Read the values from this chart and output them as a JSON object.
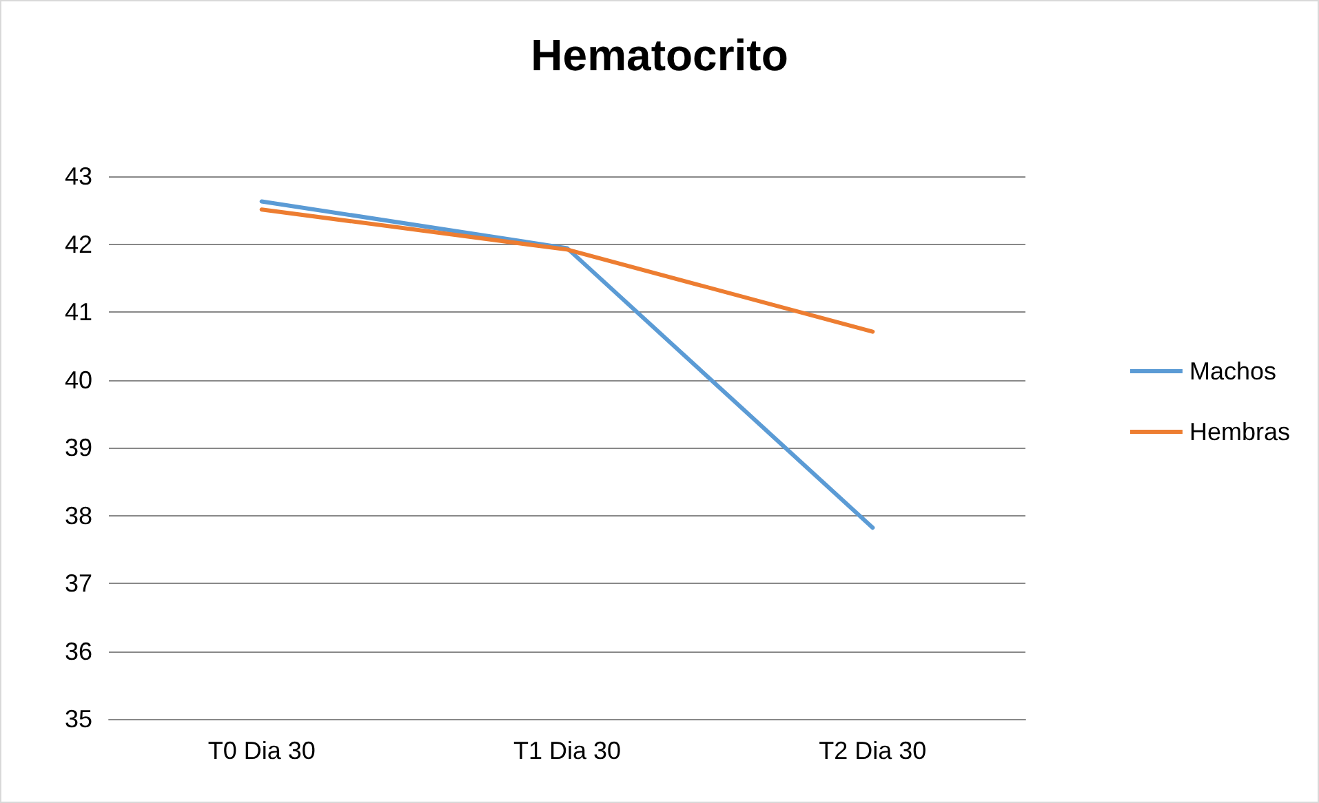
{
  "chart_data": {
    "type": "line",
    "title": "Hematocrito",
    "categories": [
      "T0 Dia 30",
      "T1 Dia 30",
      "T2 Dia 30"
    ],
    "series": [
      {
        "name": "Machos",
        "color": "#5b9bd5",
        "values": [
          42.63,
          41.94,
          37.82
        ]
      },
      {
        "name": "Hembras",
        "color": "#ed7d31",
        "values": [
          42.51,
          41.92,
          40.71
        ]
      }
    ],
    "ylim": [
      35,
      43
    ],
    "yticks": [
      35,
      36,
      37,
      38,
      39,
      40,
      41,
      42,
      43
    ],
    "grid": "y",
    "legend": "right",
    "marker": "none"
  }
}
